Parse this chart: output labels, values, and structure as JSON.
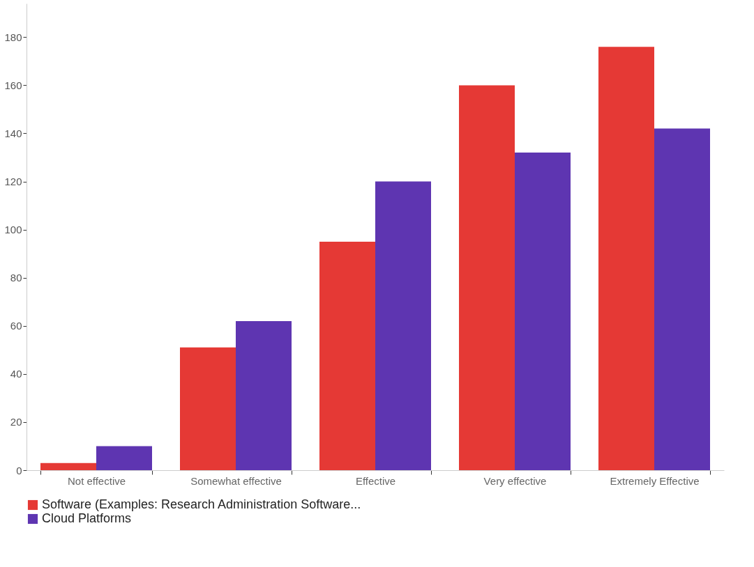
{
  "chart_data": {
    "type": "bar",
    "categories": [
      "Not effective",
      "Somewhat effective",
      "Effective",
      "Very effective",
      "Extremely Effective"
    ],
    "series": [
      {
        "name": "Software (Examples: Research Administration Software...",
        "color": "#e53935",
        "values": [
          3,
          51,
          95,
          160,
          176
        ]
      },
      {
        "name": "Cloud Platforms",
        "color": "#5e35b1",
        "values": [
          10,
          62,
          120,
          132,
          142
        ]
      }
    ],
    "ylim": [
      0,
      194
    ],
    "yticks": [
      0,
      20,
      40,
      60,
      80,
      100,
      120,
      140,
      160,
      180
    ],
    "grid": false,
    "legend": "bottom"
  }
}
